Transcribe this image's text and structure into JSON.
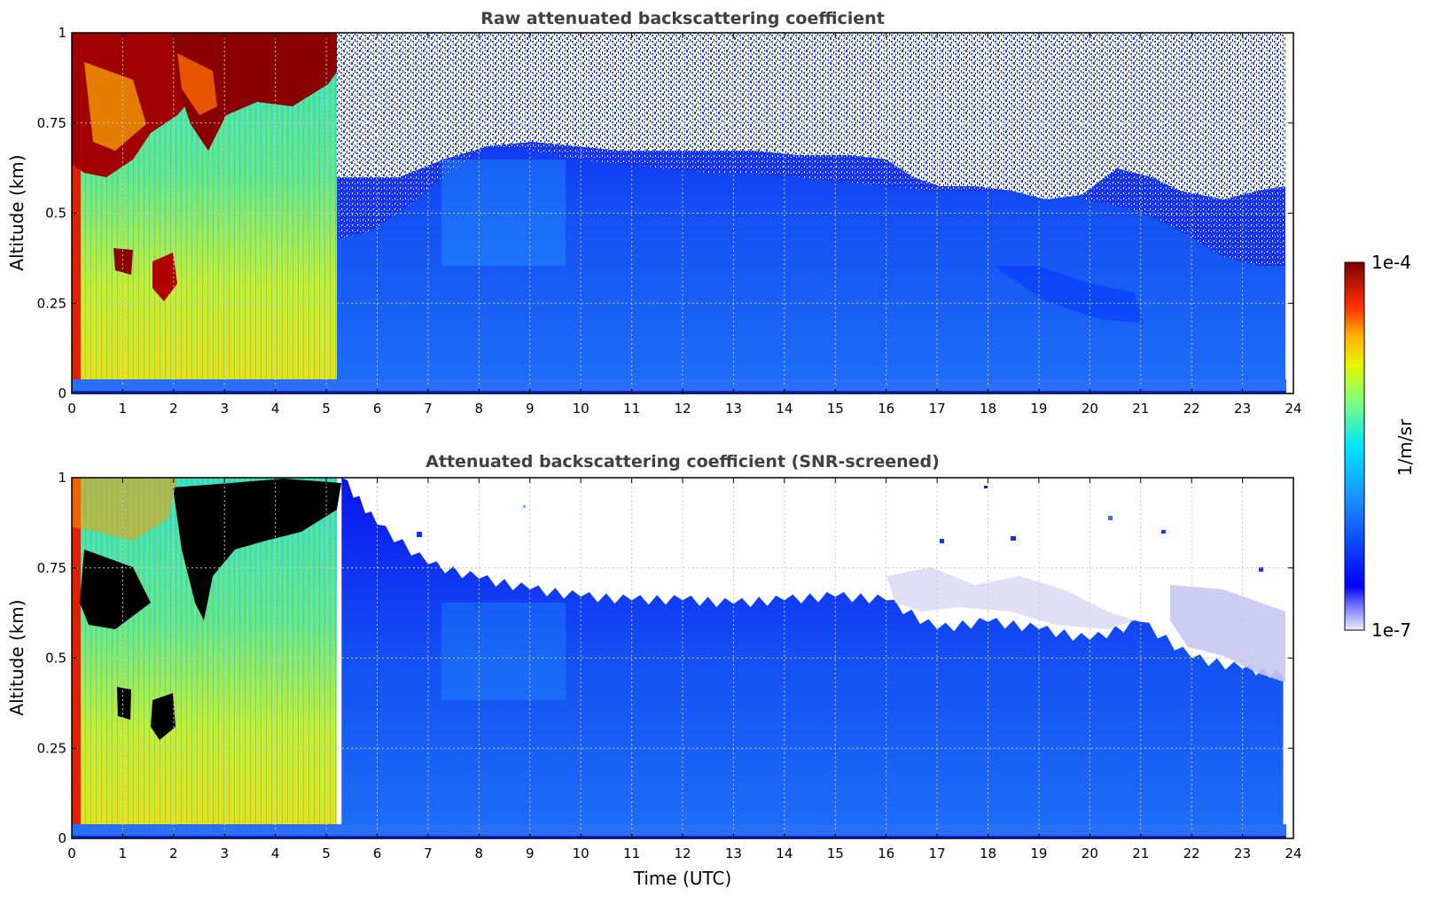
{
  "chart_data": [
    {
      "type": "heatmap",
      "title": "Raw attenuated backscattering coefficient",
      "xlabel": "",
      "ylabel": "Altitude (km)",
      "xlim": [
        0,
        24
      ],
      "ylim": [
        0,
        1
      ],
      "x_ticks": [
        "0",
        "1",
        "2",
        "3",
        "4",
        "5",
        "6",
        "7",
        "8",
        "9",
        "10",
        "11",
        "12",
        "13",
        "14",
        "15",
        "16",
        "17",
        "18",
        "19",
        "20",
        "21",
        "22",
        "23",
        "24"
      ],
      "y_ticks": [
        "0",
        "0.25",
        "0.5",
        "0.75",
        "1"
      ],
      "grid": true,
      "data_extent_time": [
        0,
        23.8
      ],
      "features": [
        {
          "time": [
            0,
            5.3
          ],
          "altitude": [
            0,
            1
          ],
          "description": "high backscatter, green-yellow"
        },
        {
          "time": [
            0,
            1.6
          ],
          "altitude": [
            0.58,
            0.95
          ],
          "description": "very high backscatter, dark red"
        },
        {
          "time": [
            2.0,
            5.3
          ],
          "altitude": [
            0.78,
            1.0
          ],
          "description": "very high backscatter, dark red"
        },
        {
          "time": [
            5.3,
            23.8
          ],
          "altitude": [
            0,
            0.45
          ],
          "description": "low backscatter, blue"
        },
        {
          "time": [
            5.3,
            23.8
          ],
          "altitude": [
            0.45,
            1.0
          ],
          "description": "noise, speckled blue/white"
        }
      ]
    },
    {
      "type": "heatmap",
      "title": "Attenuated backscattering coefficient (SNR-screened)",
      "xlabel": "Time (UTC)",
      "ylabel": "Altitude (km)",
      "xlim": [
        0,
        24
      ],
      "ylim": [
        0,
        1
      ],
      "x_ticks": [
        "0",
        "1",
        "2",
        "3",
        "4",
        "5",
        "6",
        "7",
        "8",
        "9",
        "10",
        "11",
        "12",
        "13",
        "14",
        "15",
        "16",
        "17",
        "18",
        "19",
        "20",
        "21",
        "22",
        "23",
        "24"
      ],
      "y_ticks": [
        "0",
        "0.25",
        "0.5",
        "0.75",
        "1"
      ],
      "grid": true,
      "data_extent_time": [
        0,
        23.8
      ],
      "screened_top_altitude": [
        {
          "time": 5.3,
          "altitude": 1.0
        },
        {
          "time": 6,
          "altitude": 0.87
        },
        {
          "time": 7,
          "altitude": 0.76
        },
        {
          "time": 8,
          "altitude": 0.72
        },
        {
          "time": 9,
          "altitude": 0.69
        },
        {
          "time": 10,
          "altitude": 0.67
        },
        {
          "time": 11,
          "altitude": 0.66
        },
        {
          "time": 12,
          "altitude": 0.66
        },
        {
          "time": 13,
          "altitude": 0.65
        },
        {
          "time": 14,
          "altitude": 0.66
        },
        {
          "time": 15,
          "altitude": 0.67
        },
        {
          "time": 16,
          "altitude": 0.66
        },
        {
          "time": 17,
          "altitude": 0.58
        },
        {
          "time": 18,
          "altitude": 0.6
        },
        {
          "time": 19,
          "altitude": 0.58
        },
        {
          "time": 20,
          "altitude": 0.55
        },
        {
          "time": 21,
          "altitude": 0.6
        },
        {
          "time": 22,
          "altitude": 0.5
        },
        {
          "time": 23,
          "altitude": 0.47
        },
        {
          "time": 23.8,
          "altitude": 0.45
        }
      ]
    }
  ],
  "colorbar": {
    "label": "1/m/sr",
    "max_label": "1e-4",
    "min_label": "1e-7",
    "scale": "log",
    "colormap": "jet",
    "colors": [
      "#e8e8f8",
      "#0000ff",
      "#1f8fff",
      "#00e5ff",
      "#d9f700",
      "#ffb000",
      "#e00000",
      "#7f0000"
    ]
  }
}
